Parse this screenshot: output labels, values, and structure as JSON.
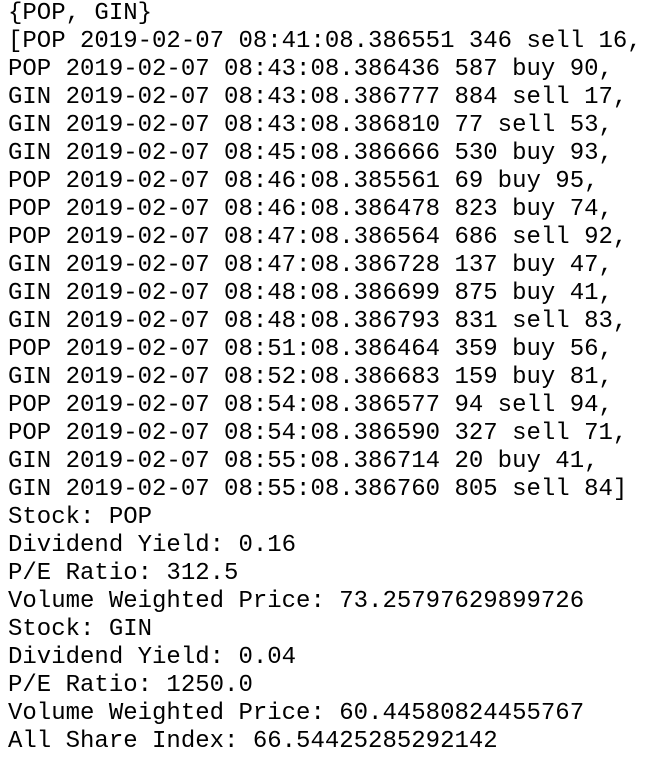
{
  "terminal": {
    "lines": [
      "{POP, GIN}",
      "[POP 2019-02-07 08:41:08.386551 346 sell 16,",
      "POP 2019-02-07 08:43:08.386436 587 buy 90,",
      "GIN 2019-02-07 08:43:08.386777 884 sell 17,",
      "GIN 2019-02-07 08:43:08.386810 77 sell 53,",
      "GIN 2019-02-07 08:45:08.386666 530 buy 93,",
      "POP 2019-02-07 08:46:08.385561 69 buy 95,",
      "POP 2019-02-07 08:46:08.386478 823 buy 74,",
      "POP 2019-02-07 08:47:08.386564 686 sell 92,",
      "GIN 2019-02-07 08:47:08.386728 137 buy 47,",
      "GIN 2019-02-07 08:48:08.386699 875 buy 41,",
      "GIN 2019-02-07 08:48:08.386793 831 sell 83,",
      "POP 2019-02-07 08:51:08.386464 359 buy 56,",
      "GIN 2019-02-07 08:52:08.386683 159 buy 81,",
      "POP 2019-02-07 08:54:08.386577 94 sell 94,",
      "POP 2019-02-07 08:54:08.386590 327 sell 71,",
      "GIN 2019-02-07 08:55:08.386714 20 buy 41,",
      "GIN 2019-02-07 08:55:08.386760 805 sell 84]",
      "Stock: POP",
      "Dividend Yield: 0.16",
      "P/E Ratio: 312.5",
      "Volume Weighted Price: 73.25797629899726",
      "Stock: GIN",
      "Dividend Yield: 0.04",
      "P/E Ratio: 1250.0",
      "Volume Weighted Price: 60.44580824455767",
      "All Share Index: 66.54425285292142"
    ]
  }
}
